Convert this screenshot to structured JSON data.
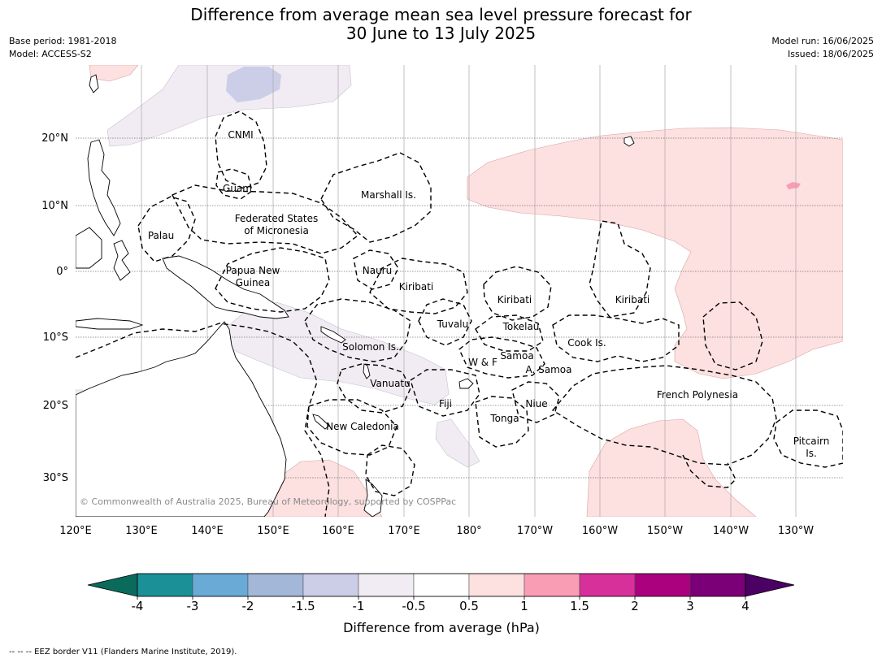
{
  "header": {
    "title_line1": "Difference from average mean sea level pressure forecast for",
    "title_line2": "30 June to 13 July 2025",
    "base_period": "Base period: 1981-2018",
    "model": "Model: ACCESS-S2",
    "model_run": "Model run: 16/06/2025",
    "issued": "Issued: 18/06/2025"
  },
  "map": {
    "lon_labels": [
      "120°E",
      "130°E",
      "140°E",
      "150°E",
      "160°E",
      "170°E",
      "180°",
      "170°W",
      "160°W",
      "150°W",
      "140°W",
      "130°W"
    ],
    "lat_labels": [
      "20°N",
      "10°N",
      "0°",
      "10°S",
      "20°S",
      "30°S"
    ],
    "regions": {
      "cnmi": "CNMI",
      "guam": "Guam",
      "marshall": "Marshall Is.",
      "fsm_1": "Federated States",
      "fsm_2": "of Micronesia",
      "palau": "Palau",
      "png_1": "Papua New",
      "png_2": "Guinea",
      "nauru": "Nauru",
      "kiribati_w": "Kiribati",
      "kiribati_c": "Kiribati",
      "kiribati_e": "Kiribati",
      "tuvalu": "Tuvalu",
      "tokelau": "Tokelau",
      "solomon": "Solomon Is.",
      "samoa": "Samoa",
      "wf": "W & F",
      "asamoa": "A. Samoa",
      "cook": "Cook Is.",
      "vanuatu": "Vanuatu",
      "fiji": "Fiji",
      "niue": "Niue",
      "tonga": "Tonga",
      "fpoly": "French Polynesia",
      "newcal": "New Caledonia",
      "pitcairn_1": "Pitcairn",
      "pitcairn_2": "Is."
    },
    "copyright": "© Commonwealth of Australia 2025, Bureau of Meteorology, supported by COSPPac"
  },
  "colorbar": {
    "title": "Difference from average (hPa)",
    "ticks": [
      "-4",
      "-3",
      "-2",
      "-1.5",
      "-1",
      "-0.5",
      "0.5",
      "1",
      "1.5",
      "2",
      "3",
      "4"
    ],
    "low_extend_color": "#0a6b5c",
    "high_extend_color": "#4b0064",
    "colors": [
      "#1b9197",
      "#69aad6",
      "#a3b7d8",
      "#cccde6",
      "#f1ecf3",
      "#ffffff",
      "#fde0e0",
      "#f99db4",
      "#d8309b",
      "#ab017e",
      "#7b0077"
    ]
  },
  "footer": {
    "legend": "--  --  -- EEZ border V11 (Flanders Marine Institute, 2019)."
  }
}
